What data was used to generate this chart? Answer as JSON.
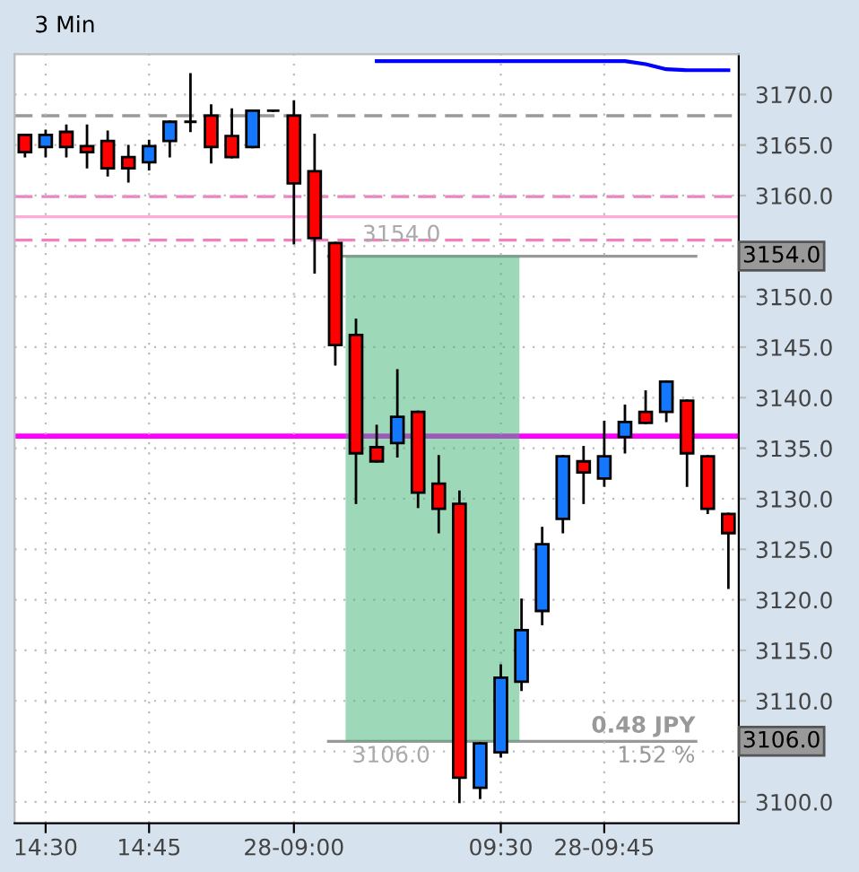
{
  "chart_data": {
    "type": "candlestick",
    "title": "3 Min",
    "categories": [
      null,
      "14:30",
      null,
      null,
      null,
      null,
      "14:45",
      null,
      null,
      null,
      null,
      null,
      null,
      "28-09:00",
      null,
      null,
      null,
      null,
      null,
      null,
      null,
      null,
      null,
      "09:30",
      null,
      null,
      null,
      null,
      "28-09:45",
      null,
      null,
      null,
      null,
      null,
      null
    ],
    "ohlc": [
      [
        3166.0,
        3166.0,
        3163.9,
        3164.3
      ],
      [
        3164.8,
        3166.4,
        3163.9,
        3166.0
      ],
      [
        3166.3,
        3166.9,
        3163.9,
        3164.8
      ],
      [
        3164.9,
        3166.9,
        3162.8,
        3164.3
      ],
      [
        3165.4,
        3166.3,
        3162.0,
        3162.7
      ],
      [
        3163.8,
        3164.9,
        3161.4,
        3162.7
      ],
      [
        3163.3,
        3165.4,
        3162.6,
        3164.9
      ],
      [
        3165.4,
        3167.3,
        3163.9,
        3167.3
      ],
      [
        3167.3,
        3172.0,
        3166.4,
        3167.3
      ],
      [
        3167.9,
        3168.9,
        3163.3,
        3164.8
      ],
      [
        3165.9,
        3168.5,
        3163.8,
        3163.8
      ],
      [
        3164.8,
        3168.4,
        3164.8,
        3168.4
      ],
      [
        3168.4,
        3168.4,
        3168.4,
        3168.4
      ],
      [
        3167.9,
        3169.3,
        3155.3,
        3161.2
      ],
      [
        3162.4,
        3166.0,
        3152.4,
        3155.8
      ],
      [
        3155.3,
        3155.3,
        3143.3,
        3145.2
      ],
      [
        3146.2,
        3147.7,
        3129.6,
        3134.5
      ],
      [
        3135.1,
        3137.2,
        3133.7,
        3133.7
      ],
      [
        3135.5,
        3142.7,
        3134.2,
        3138.1
      ],
      [
        3138.6,
        3138.6,
        3129.2,
        3130.6
      ],
      [
        3131.5,
        3134.2,
        3126.7,
        3129.0
      ],
      [
        3129.5,
        3130.7,
        3100.0,
        3102.4
      ],
      [
        3101.4,
        3105.8,
        3100.4,
        3105.8
      ],
      [
        3104.9,
        3113.5,
        3104.5,
        3112.3
      ],
      [
        3111.9,
        3120.0,
        3111.1,
        3117.0
      ],
      [
        3118.9,
        3127.1,
        3117.6,
        3125.5
      ],
      [
        3128.0,
        3134.2,
        3126.7,
        3134.2
      ],
      [
        3133.7,
        3135.1,
        3129.6,
        3132.6
      ],
      [
        3132.0,
        3137.6,
        3131.3,
        3134.2
      ],
      [
        3136.1,
        3139.2,
        3134.6,
        3137.6
      ],
      [
        3138.6,
        3140.6,
        3137.5,
        3137.5
      ],
      [
        3138.6,
        3141.6,
        3137.7,
        3141.6
      ],
      [
        3139.7,
        3139.7,
        3131.3,
        3134.5
      ],
      [
        3134.2,
        3134.2,
        3128.6,
        3129.0
      ],
      [
        3128.5,
        3128.5,
        3121.2,
        3126.6
      ]
    ],
    "colors": [
      "#ff0000",
      "#1478ff",
      "#ff0000",
      "#ff0000",
      "#ff0000",
      "#ff0000",
      "#1478ff",
      "#1478ff",
      "#000000",
      "#ff0000",
      "#ff0000",
      "#1478ff",
      "#000000",
      "#ff0000",
      "#ff0000",
      "#ff0000",
      "#ff0000",
      "#ff0000",
      "#1478ff",
      "#ff0000",
      "#ff0000",
      "#ff0000",
      "#1478ff",
      "#1478ff",
      "#1478ff",
      "#1478ff",
      "#1478ff",
      "#ff0000",
      "#1478ff",
      "#1478ff",
      "#ff0000",
      "#1478ff",
      "#ff0000",
      "#ff0000",
      "#ff0000"
    ],
    "series": [
      {
        "type": "line",
        "color": "#0000ff",
        "values": [
          null,
          null,
          null,
          null,
          null,
          null,
          null,
          null,
          null,
          null,
          null,
          null,
          null,
          null,
          null,
          null,
          null,
          3173.3,
          3173.3,
          3173.3,
          3173.3,
          3173.3,
          3173.3,
          3173.3,
          3173.3,
          3173.3,
          3173.3,
          3173.3,
          3173.3,
          3173.3,
          3173.0,
          3172.5,
          3172.4,
          3172.4,
          3172.4
        ]
      }
    ],
    "ref_lines": [
      {
        "axis": "y",
        "value": 3167.9,
        "color": "#999999",
        "line_style": "dashed"
      },
      {
        "axis": "y",
        "value": 3159.9,
        "color": "#f080c0",
        "line_style": "dashed"
      },
      {
        "axis": "y",
        "value": 3157.9,
        "color": "#ffaad8",
        "line_style": "solid"
      },
      {
        "axis": "y",
        "value": 3155.6,
        "color": "#f080c0",
        "line_style": "dashed"
      },
      {
        "axis": "y",
        "value": 3136.2,
        "color": "#ff00ff",
        "line_style": "solid"
      },
      {
        "axis": "y",
        "value": 3154.0,
        "label": "3154.0",
        "color": "#999999",
        "line_style": "solid"
      },
      {
        "axis": "y",
        "value": 3106.0,
        "label": "3106.0",
        "color": "#999999",
        "line_style": "solid"
      }
    ],
    "annotations": [
      "0.48 JPY",
      "1.52 %"
    ],
    "ylim": [
      3097.9,
      3174.0
    ],
    "yticks": [
      {
        "value": 3100,
        "label": "3100.0"
      },
      {
        "value": 3105,
        "label": null
      },
      {
        "value": 3110,
        "label": "3110.0"
      },
      {
        "value": 3115,
        "label": "3115.0"
      },
      {
        "value": 3120,
        "label": "3120.0"
      },
      {
        "value": 3125,
        "label": "3125.0"
      },
      {
        "value": 3130,
        "label": "3130.0"
      },
      {
        "value": 3135,
        "label": "3135.0"
      },
      {
        "value": 3140,
        "label": "3140.0"
      },
      {
        "value": 3145,
        "label": "3145.0"
      },
      {
        "value": 3150,
        "label": "3150.0"
      },
      {
        "value": 3155,
        "label": null
      },
      {
        "value": 3160,
        "label": "3160.0"
      },
      {
        "value": 3165,
        "label": "3165.0"
      },
      {
        "value": 3170,
        "label": "3170.0"
      }
    ],
    "grid": true
  }
}
